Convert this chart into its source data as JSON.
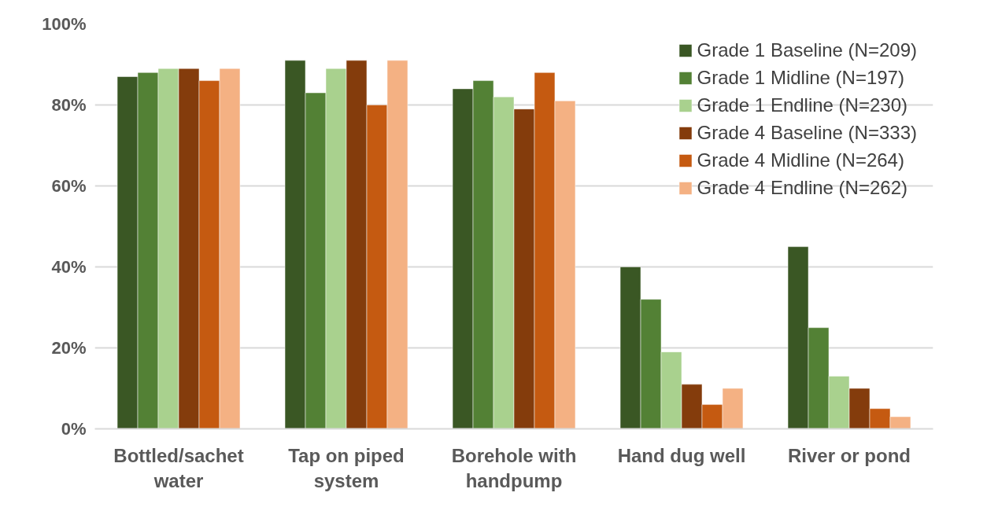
{
  "chart_data": {
    "type": "bar",
    "categories": [
      "Bottled/sachet water",
      "Tap on piped system",
      "Borehole with handpump",
      "Hand dug well",
      "River or pond"
    ],
    "series": [
      {
        "name": "Grade 1 Baseline (N=209)",
        "color": "#3a5724",
        "values": [
          87,
          91,
          84,
          40,
          45
        ]
      },
      {
        "name": "Grade 1 Midline (N=197)",
        "color": "#538135",
        "values": [
          88,
          83,
          86,
          32,
          25
        ]
      },
      {
        "name": "Grade 1 Endline (N=230)",
        "color": "#a9d18e",
        "values": [
          89,
          89,
          82,
          19,
          13
        ]
      },
      {
        "name": "Grade 4 Baseline (N=333)",
        "color": "#843c0c",
        "values": [
          89,
          91,
          79,
          11,
          10
        ]
      },
      {
        "name": "Grade 4 Midline (N=264)",
        "color": "#c55a11",
        "values": [
          86,
          80,
          88,
          6,
          5
        ]
      },
      {
        "name": "Grade 4 Endline (N=262)",
        "color": "#f4b183",
        "values": [
          89,
          91,
          81,
          10,
          3
        ]
      }
    ],
    "ylim": [
      0,
      100
    ],
    "yticks": [
      {
        "value": 0,
        "label": "0%"
      },
      {
        "value": 20,
        "label": "20%"
      },
      {
        "value": 40,
        "label": "40%"
      },
      {
        "value": 60,
        "label": "60%"
      },
      {
        "value": 80,
        "label": "80%"
      },
      {
        "value": 100,
        "label": "100%"
      }
    ],
    "grid": "y",
    "legend": "top right"
  }
}
